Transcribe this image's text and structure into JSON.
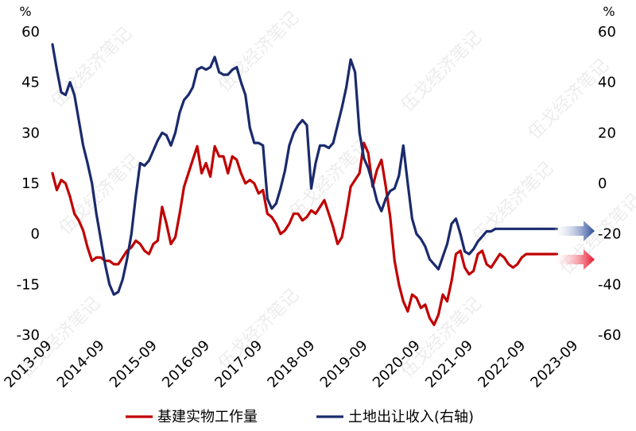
{
  "chart_data": {
    "type": "line",
    "left_unit": "%",
    "right_unit": "%",
    "y_left_lim": [
      -30,
      60
    ],
    "y_left_ticks": [
      60,
      45,
      30,
      15,
      0,
      -15,
      -30
    ],
    "y_right_lim": [
      -60,
      60
    ],
    "y_right_ticks": [
      60,
      40,
      20,
      0,
      -20,
      -40,
      -60
    ],
    "x_ticks": [
      "2013-09",
      "2014-09",
      "2015-09",
      "2016-09",
      "2017-09",
      "2018-09",
      "2019-09",
      "2020-09",
      "2021-09",
      "2022-09",
      "2023-09"
    ],
    "grid": false,
    "legend_position": "bottom",
    "series": [
      {
        "name": "基建实物工作量",
        "axis": "left",
        "color": "#c00000",
        "x": [
          "2013-09",
          "2013-10",
          "2013-11",
          "2013-12",
          "2014-01",
          "2014-02",
          "2014-03",
          "2014-04",
          "2014-05",
          "2014-06",
          "2014-07",
          "2014-08",
          "2014-09",
          "2014-10",
          "2014-11",
          "2014-12",
          "2015-01",
          "2015-02",
          "2015-03",
          "2015-04",
          "2015-05",
          "2015-06",
          "2015-07",
          "2015-08",
          "2015-09",
          "2015-10",
          "2015-11",
          "2015-12",
          "2016-01",
          "2016-02",
          "2016-03",
          "2016-04",
          "2016-05",
          "2016-06",
          "2016-07",
          "2016-08",
          "2016-09",
          "2016-10",
          "2016-11",
          "2016-12",
          "2017-01",
          "2017-02",
          "2017-03",
          "2017-04",
          "2017-05",
          "2017-06",
          "2017-07",
          "2017-08",
          "2017-09",
          "2017-10",
          "2017-11",
          "2017-12",
          "2018-01",
          "2018-02",
          "2018-03",
          "2018-04",
          "2018-05",
          "2018-06",
          "2018-07",
          "2018-08",
          "2018-09",
          "2018-10",
          "2018-11",
          "2018-12",
          "2019-01",
          "2019-02",
          "2019-03",
          "2019-04",
          "2019-05",
          "2019-06",
          "2019-07",
          "2019-08",
          "2019-09",
          "2019-10",
          "2019-11",
          "2019-12",
          "2020-01",
          "2020-02",
          "2020-03",
          "2020-04",
          "2020-05",
          "2020-06",
          "2020-07",
          "2020-08",
          "2020-09",
          "2020-10",
          "2020-11",
          "2020-12",
          "2021-01",
          "2021-02",
          "2021-03",
          "2021-04",
          "2021-05",
          "2021-06",
          "2021-07",
          "2021-08",
          "2021-09",
          "2021-10",
          "2021-11",
          "2021-12",
          "2022-01",
          "2022-02",
          "2022-03",
          "2022-04",
          "2022-05",
          "2022-06",
          "2022-07",
          "2022-08",
          "2022-09",
          "2022-10",
          "2022-11",
          "2022-12",
          "2023-01",
          "2023-02",
          "2023-03",
          "2023-04"
        ],
        "values": [
          18,
          13,
          16,
          15,
          11,
          6,
          4,
          1,
          -4,
          -8,
          -7,
          -7,
          -8,
          -8,
          -9,
          -9,
          -7,
          -5,
          -4,
          -2,
          -3,
          -5,
          -6,
          -3,
          -2,
          8,
          3,
          -3,
          -1,
          6,
          14,
          18,
          22,
          26,
          18,
          21,
          17,
          26,
          23,
          23,
          18,
          23,
          22,
          18,
          15,
          16,
          15,
          12,
          13,
          6,
          5,
          3,
          0,
          1,
          3,
          6,
          6,
          4,
          5,
          7,
          6,
          8,
          10,
          6,
          2,
          -3,
          -1,
          6,
          14,
          16,
          18,
          27,
          24,
          14,
          19,
          22,
          14,
          5,
          -8,
          -15,
          -20,
          -23,
          -18,
          -19,
          -22,
          -21,
          -25,
          -27,
          -24,
          -18,
          -20,
          -14,
          -6,
          -5,
          -10,
          -12,
          -11,
          -6,
          -5,
          -9,
          -10,
          -8,
          -6,
          -7,
          -9,
          -10,
          -9,
          -7,
          -6,
          -6,
          -6,
          -6,
          -6,
          -6,
          -6,
          -6
        ],
        "projection": "up"
      },
      {
        "name": "土地出让收入(右轴)",
        "axis": "right",
        "color": "#1a2a6c",
        "x": [
          "2013-09",
          "2013-10",
          "2013-11",
          "2013-12",
          "2014-01",
          "2014-02",
          "2014-03",
          "2014-04",
          "2014-05",
          "2014-06",
          "2014-07",
          "2014-08",
          "2014-09",
          "2014-10",
          "2014-11",
          "2014-12",
          "2015-01",
          "2015-02",
          "2015-03",
          "2015-04",
          "2015-05",
          "2015-06",
          "2015-07",
          "2015-08",
          "2015-09",
          "2015-10",
          "2015-11",
          "2015-12",
          "2016-01",
          "2016-02",
          "2016-03",
          "2016-04",
          "2016-05",
          "2016-06",
          "2016-07",
          "2016-08",
          "2016-09",
          "2016-10",
          "2016-11",
          "2016-12",
          "2017-01",
          "2017-02",
          "2017-03",
          "2017-04",
          "2017-05",
          "2017-06",
          "2017-07",
          "2017-08",
          "2017-09",
          "2017-10",
          "2017-11",
          "2017-12",
          "2018-01",
          "2018-02",
          "2018-03",
          "2018-04",
          "2018-05",
          "2018-06",
          "2018-07",
          "2018-08",
          "2018-09",
          "2018-10",
          "2018-11",
          "2018-12",
          "2019-01",
          "2019-02",
          "2019-03",
          "2019-04",
          "2019-05",
          "2019-06",
          "2019-07",
          "2019-08",
          "2019-09",
          "2019-10",
          "2019-11",
          "2019-12",
          "2020-01",
          "2020-02",
          "2020-03",
          "2020-04",
          "2020-05",
          "2020-06",
          "2020-07",
          "2020-08",
          "2020-09",
          "2020-10",
          "2020-11",
          "2020-12",
          "2021-01",
          "2021-02",
          "2021-03",
          "2021-04",
          "2021-05",
          "2021-06",
          "2021-07",
          "2021-08",
          "2021-09",
          "2021-10",
          "2021-11",
          "2021-12",
          "2022-01",
          "2022-02",
          "2022-03",
          "2022-04",
          "2022-05",
          "2022-06",
          "2022-07",
          "2022-08",
          "2022-09",
          "2022-10",
          "2022-11",
          "2022-12",
          "2023-01",
          "2023-02",
          "2023-03",
          "2023-04"
        ],
        "values": [
          55,
          45,
          36,
          35,
          40,
          35,
          25,
          15,
          8,
          0,
          -12,
          -22,
          -32,
          -40,
          -44,
          -43,
          -38,
          -30,
          -20,
          -5,
          8,
          7,
          9,
          13,
          17,
          20,
          19,
          15,
          20,
          28,
          33,
          35,
          38,
          45,
          46,
          45,
          46,
          50,
          44,
          43,
          43,
          45,
          46,
          40,
          35,
          22,
          16,
          16,
          15,
          -6,
          -10,
          -8,
          -2,
          5,
          15,
          20,
          23,
          25,
          23,
          -2,
          8,
          15,
          15,
          14,
          16,
          23,
          30,
          38,
          49,
          44,
          20,
          10,
          6,
          0,
          -7,
          -11,
          -6,
          -3,
          -2,
          3,
          15,
          0,
          -14,
          -20,
          -22,
          -25,
          -30,
          -32,
          -34,
          -29,
          -24,
          -16,
          -14,
          -20,
          -27,
          -28,
          -26,
          -23,
          -21,
          -19,
          -19,
          -18,
          -18,
          -18,
          -18,
          -18,
          -18,
          -18,
          -18,
          -18,
          -18,
          -18,
          -18,
          -18,
          -18,
          -18
        ],
        "projection": "up"
      }
    ]
  },
  "watermark": "伍戈经济笔记"
}
